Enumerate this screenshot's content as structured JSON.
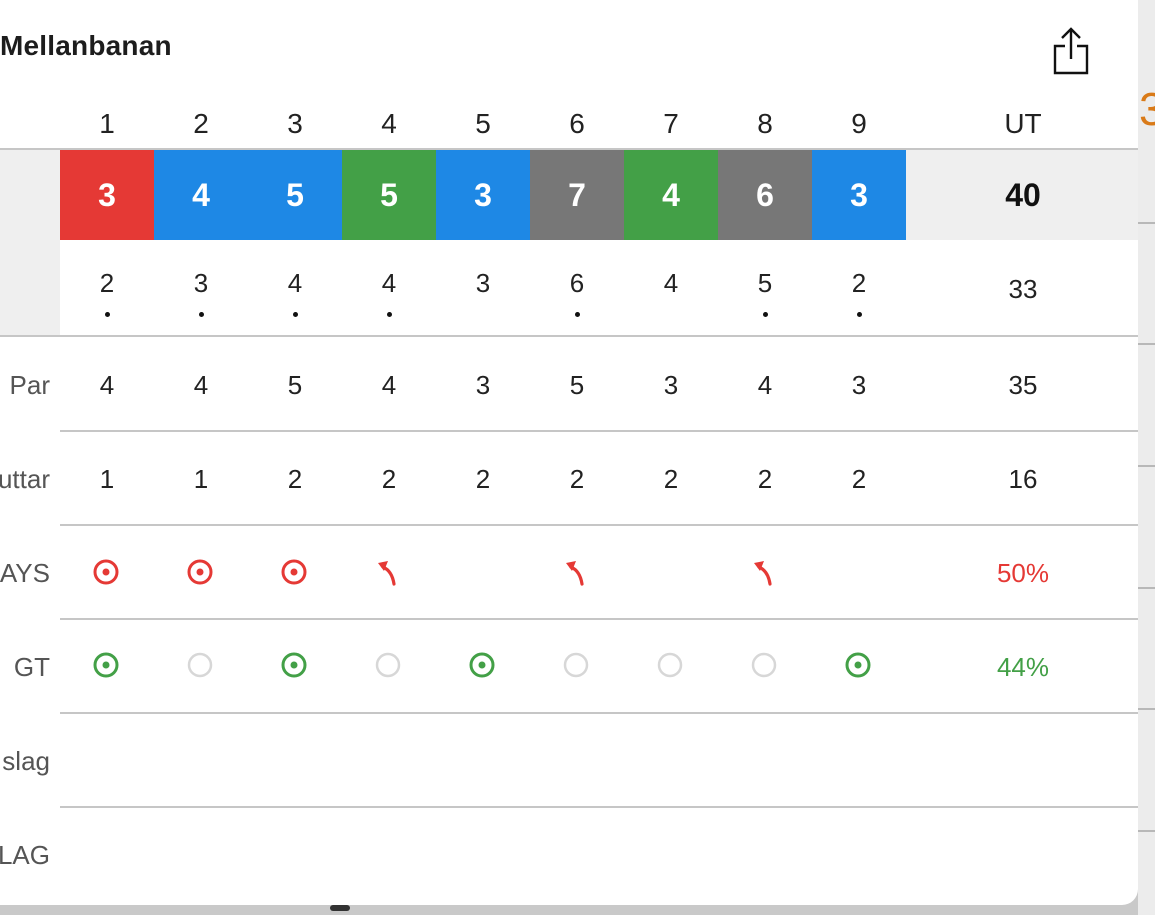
{
  "title": "Mellanbanan",
  "holes": [
    "1",
    "2",
    "3",
    "4",
    "5",
    "6",
    "7",
    "8",
    "9"
  ],
  "total_label": "UT",
  "scores": [
    {
      "value": "3",
      "color": "#e53935"
    },
    {
      "value": "4",
      "color": "#1e88e5"
    },
    {
      "value": "5",
      "color": "#1e88e5"
    },
    {
      "value": "5",
      "color": "#43a047"
    },
    {
      "value": "3",
      "color": "#1e88e5"
    },
    {
      "value": "7",
      "color": "#777777"
    },
    {
      "value": "4",
      "color": "#43a047"
    },
    {
      "value": "6",
      "color": "#777777"
    },
    {
      "value": "3",
      "color": "#1e88e5"
    }
  ],
  "scores_total": "40",
  "net": [
    "2",
    "3",
    "4",
    "4",
    "3",
    "6",
    "4",
    "5",
    "2"
  ],
  "net_dot": [
    true,
    true,
    true,
    true,
    false,
    true,
    false,
    true,
    true
  ],
  "net_total": "33",
  "par_label": "Par",
  "par": [
    "4",
    "4",
    "5",
    "4",
    "3",
    "5",
    "3",
    "4",
    "3"
  ],
  "par_total": "35",
  "putts_label": "uttar",
  "putts": [
    "1",
    "1",
    "2",
    "2",
    "2",
    "2",
    "2",
    "2",
    "2"
  ],
  "putts_total": "16",
  "fairways_label": "AYS",
  "fairways": [
    "hit",
    "hit",
    "hit",
    "left",
    "none",
    "left",
    "none",
    "left",
    "none"
  ],
  "fairways_total": "50%",
  "gir_label": "GT",
  "gir": [
    "hit",
    "miss",
    "hit",
    "miss",
    "hit",
    "miss",
    "miss",
    "miss",
    "hit"
  ],
  "gir_total": "44%",
  "slag_label": "slag",
  "lag_label": "LAG",
  "colors": {
    "red": "#e53935",
    "green": "#43a047",
    "ring_empty": "#d7d7d7"
  },
  "icons": {
    "share": "share-icon",
    "fairway_hit": "target-icon",
    "fairway_left": "arrow-left-curve-icon",
    "gir_hit": "green-target-icon",
    "gir_miss": "empty-circle-icon"
  }
}
